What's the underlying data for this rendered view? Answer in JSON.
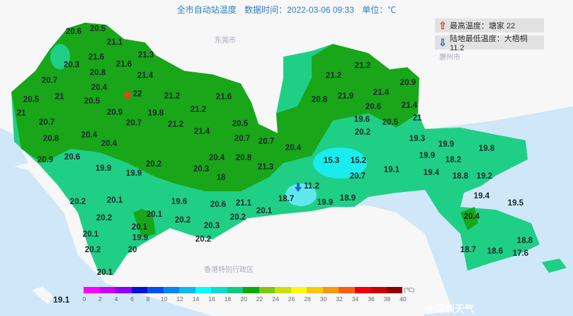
{
  "header": {
    "title": "全市自动站温度",
    "time_label": "数据时间：2022-03-06 09:33",
    "unit_label": "单位：℃"
  },
  "extremes": {
    "max": {
      "icon": "red-up-arrow-icon",
      "label": "最高温度：塘家 22",
      "color": "#e8401c"
    },
    "min": {
      "icon": "blue-down-arrow-icon",
      "label": "陆地最低温度：大梧桐 11.2",
      "color": "#2a63d6"
    }
  },
  "places": {
    "dongguan": "东莞市",
    "huizhou": "惠州市",
    "hongkong": "香港特别行政区"
  },
  "stations": [
    "20.6",
    "20.5",
    "21.1",
    "21.6",
    "21.3",
    "20.3",
    "21.6",
    "20.8",
    "20.7",
    "21.4",
    "20.4",
    "20.5",
    "21",
    "22",
    "21.2",
    "21.6",
    "21",
    "20.5",
    "20.9",
    "19.8",
    "21.2",
    "20.7",
    "20.7",
    "21.2",
    "20.4",
    "21.4",
    "20.5",
    "20.8",
    "20.4",
    "20.7",
    "20.7",
    "20.4",
    "20.9",
    "20.6",
    "20.4",
    "20.8",
    "20.2",
    "21.3",
    "19.9",
    "19.9",
    "20.3",
    "18",
    "15.3",
    "15.2",
    "20.7",
    "19.1",
    "11.2",
    "20.2",
    "20.1",
    "19.6",
    "20.6",
    "21.1",
    "20.2",
    "20.1",
    "20.2",
    "20.1",
    "20.2",
    "20.3",
    "20.1",
    "18.7",
    "19.9",
    "18.9",
    "20.2",
    "20.1",
    "19.9",
    "20.2",
    "20",
    "20.1",
    "21.2",
    "21.2",
    "20.8",
    "21.9",
    "21.4",
    "20.9",
    "20.6",
    "21.4",
    "21",
    "19.6",
    "20.5",
    "20.2",
    "19.3",
    "19.9",
    "19.9",
    "18.2",
    "19.8",
    "19.4",
    "18.8",
    "19.2",
    "19.4",
    "19.5",
    "20.4",
    "18.7",
    "18.6",
    "17.6",
    "18.8"
  ],
  "bottom_value": "19.1",
  "legend": {
    "unit": "(℃)",
    "ticks": [
      "0",
      "2",
      "4",
      "6",
      "8",
      "10",
      "12",
      "14",
      "16",
      "18",
      "20",
      "22",
      "24",
      "26",
      "28",
      "30",
      "32",
      "34",
      "36",
      "38",
      "40"
    ],
    "colors": [
      "#ff00ff",
      "#cc00ee",
      "#8a00f0",
      "#0010d8",
      "#0050f0",
      "#0088f0",
      "#10b8f0",
      "#00ffff",
      "#10dcc8",
      "#10c884",
      "#10a810",
      "#80c810",
      "#c8e010",
      "#f8f810",
      "#f8c810",
      "#f89810",
      "#f86010",
      "#f00000",
      "#c80000",
      "#900000"
    ]
  },
  "watermark": "@深圳天气",
  "colors": {
    "sea": "#cfe7f8",
    "land_green": "#19a619",
    "land_teal": "#1fcf86",
    "land_cyan": "#19ecec"
  }
}
